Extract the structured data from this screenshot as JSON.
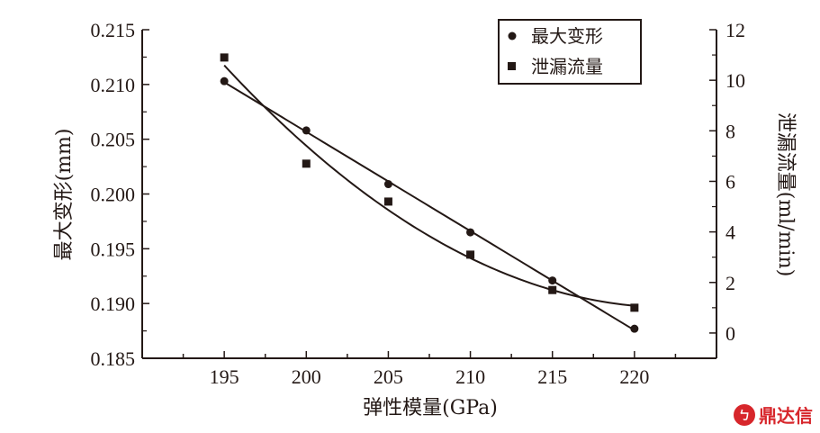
{
  "chart_data": {
    "type": "line",
    "title": "",
    "xlabel": "弹性模量(GPa)",
    "ylabel_left": "最大变形(mm)",
    "ylabel_right": "泄漏流量(ml/min)",
    "x": [
      195,
      200,
      205,
      210,
      215,
      220
    ],
    "x_ticks": [
      "195",
      "200",
      "205",
      "210",
      "215",
      "220"
    ],
    "xlim": [
      190,
      225
    ],
    "ylim_left": [
      0.185,
      0.215
    ],
    "y_ticks_left": [
      "0.215",
      "0.210",
      "0.205",
      "0.200",
      "0.195",
      "0.190",
      "0.185"
    ],
    "ylim_right": [
      -1,
      12
    ],
    "y_ticks_right": [
      "12",
      "10",
      "8",
      "6",
      "4",
      "2",
      "0"
    ],
    "grid": false,
    "legend_position": "top-right",
    "series": [
      {
        "name": "最大变形",
        "axis": "left",
        "marker": "circle",
        "values": [
          0.2103,
          0.2058,
          0.2009,
          0.1965,
          0.1921,
          0.1877
        ],
        "fit": "linear"
      },
      {
        "name": "泄漏流量",
        "axis": "right",
        "marker": "square",
        "values": [
          10.9,
          6.7,
          5.2,
          3.1,
          1.7,
          1.0
        ],
        "fit": "quadratic"
      }
    ],
    "colors": {
      "ink": "#231815"
    }
  },
  "watermark": {
    "logo": "ㄅ",
    "text": "鼎达信"
  }
}
